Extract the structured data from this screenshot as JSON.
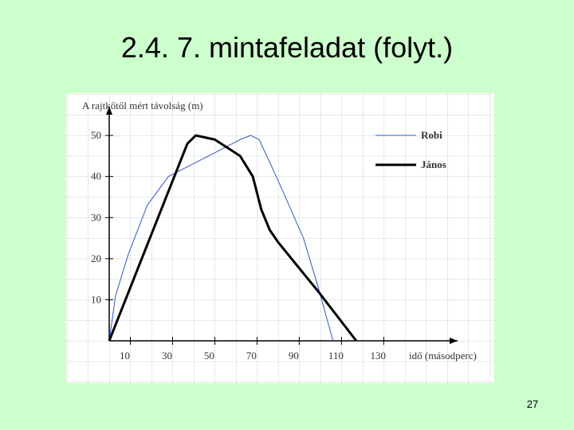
{
  "title": "2.4. 7. mintafeladat (folyt.)",
  "page_number": "27",
  "chart_data": {
    "type": "line",
    "y_label": "A rajtkőtől mért távolság (m)",
    "x_label": "idő (másodperc)",
    "xlim": [
      0,
      165
    ],
    "ylim": [
      0,
      57
    ],
    "xticks": [
      10,
      30,
      50,
      70,
      90,
      110,
      130
    ],
    "yticks": [
      10,
      20,
      30,
      40,
      50
    ],
    "series": [
      {
        "name": "Robi",
        "color": "#3355cc",
        "width": 1,
        "x": [
          0,
          3,
          9,
          18,
          28,
          47,
          62,
          67,
          71,
          80,
          92,
          99,
          106
        ],
        "values": [
          0,
          11,
          21,
          33,
          40,
          45,
          49,
          50,
          49,
          39,
          25,
          13,
          0
        ]
      },
      {
        "name": "János",
        "color": "#000000",
        "width": 3,
        "x": [
          0,
          37,
          41,
          50,
          62,
          68,
          72,
          76,
          80,
          99,
          117
        ],
        "values": [
          0,
          48,
          50,
          49,
          45,
          40,
          32,
          27,
          24,
          12,
          0
        ]
      }
    ]
  }
}
